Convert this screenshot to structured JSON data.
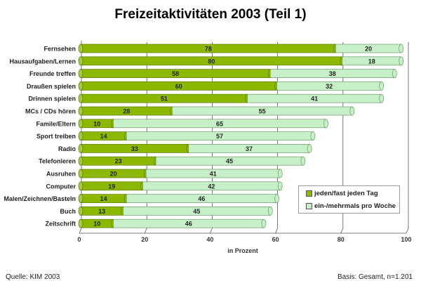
{
  "chart_data": {
    "type": "bar",
    "orientation": "horizontal-stacked",
    "title": "Freizeitaktivitäten 2003 (Teil 1)",
    "xlabel": "in Prozent",
    "xlim": [
      0,
      100
    ],
    "xticks": [
      "0",
      "20",
      "40",
      "60",
      "80",
      "100"
    ],
    "grid": true,
    "legend_position": "bottom-right",
    "categories": [
      "Fernsehen",
      "Hausaufgaben/Lernen",
      "Freunde treffen",
      "Draußen spielen",
      "Drinnen spielen",
      "MCs / CDs hören",
      "Famile/Eltern",
      "Sport treiben",
      "Radio",
      "Telefonieren",
      "Ausruhen",
      "Computer",
      "Malen/Zeichnen/Basteln",
      "Buch",
      "Zeitschrift"
    ],
    "series": [
      {
        "name": "jeden/fast jeden Tag",
        "color": "#8cb800",
        "values": [
          78,
          80,
          58,
          60,
          51,
          28,
          10,
          14,
          33,
          23,
          20,
          19,
          14,
          13,
          10
        ]
      },
      {
        "name": "ein-/mehrmals pro Woche",
        "color": "#c8f0c8",
        "values": [
          20,
          18,
          38,
          32,
          41,
          55,
          65,
          57,
          37,
          45,
          41,
          42,
          46,
          45,
          46
        ]
      }
    ]
  },
  "footer": {
    "source": "Quelle: KIM 2003",
    "basis": "Basis: Gesamt, n=1.201"
  }
}
